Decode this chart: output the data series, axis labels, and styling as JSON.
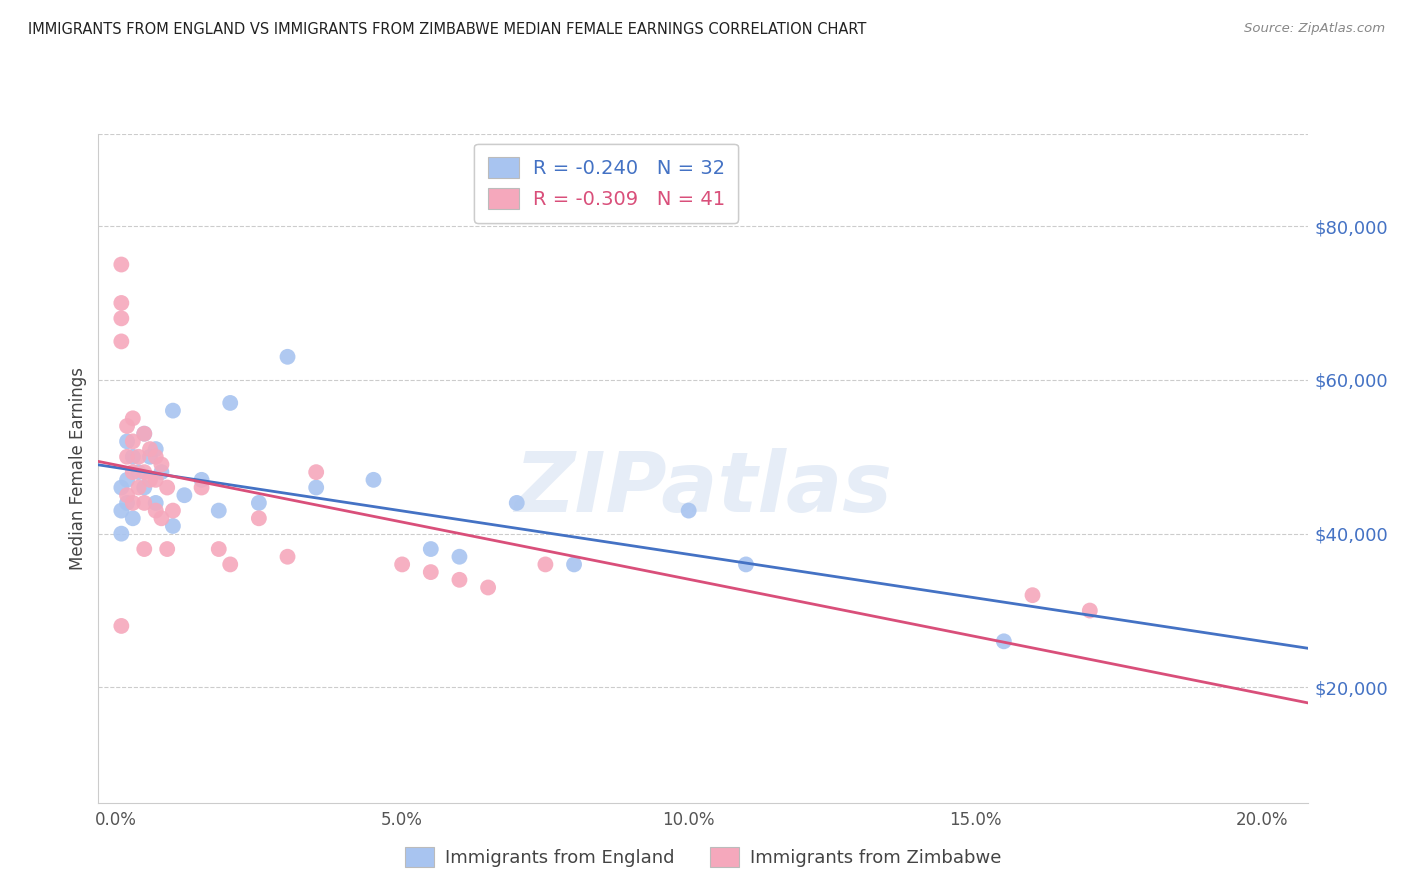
{
  "title": "IMMIGRANTS FROM ENGLAND VS IMMIGRANTS FROM ZIMBABWE MEDIAN FEMALE EARNINGS CORRELATION CHART",
  "source": "Source: ZipAtlas.com",
  "ylabel": "Median Female Earnings",
  "xlabel_ticks": [
    "0.0%",
    "5.0%",
    "10.0%",
    "15.0%",
    "20.0%"
  ],
  "xlabel_tick_vals": [
    0.0,
    0.05,
    0.1,
    0.15,
    0.2
  ],
  "ylabel_ticks": [
    "$20,000",
    "$40,000",
    "$60,000",
    "$80,000"
  ],
  "ylabel_tick_vals": [
    20000,
    40000,
    60000,
    80000
  ],
  "xlim": [
    -0.003,
    0.208
  ],
  "ylim": [
    5000,
    92000
  ],
  "england_R": -0.24,
  "england_N": 32,
  "zimbabwe_R": -0.309,
  "zimbabwe_N": 41,
  "england_color": "#a8c4f0",
  "zimbabwe_color": "#f5a8bc",
  "england_line_color": "#4472c4",
  "zimbabwe_line_color": "#d94f7a",
  "watermark": "ZIPatlas",
  "england_x": [
    0.001,
    0.001,
    0.001,
    0.002,
    0.002,
    0.002,
    0.003,
    0.003,
    0.004,
    0.005,
    0.005,
    0.006,
    0.007,
    0.007,
    0.008,
    0.01,
    0.01,
    0.012,
    0.015,
    0.018,
    0.02,
    0.025,
    0.03,
    0.035,
    0.045,
    0.055,
    0.06,
    0.07,
    0.08,
    0.1,
    0.11,
    0.155
  ],
  "england_y": [
    46000,
    43000,
    40000,
    52000,
    47000,
    44000,
    50000,
    42000,
    48000,
    53000,
    46000,
    50000,
    51000,
    44000,
    48000,
    56000,
    41000,
    45000,
    47000,
    43000,
    57000,
    44000,
    63000,
    46000,
    47000,
    38000,
    37000,
    44000,
    36000,
    43000,
    36000,
    26000
  ],
  "zimbabwe_x": [
    0.001,
    0.001,
    0.001,
    0.001,
    0.001,
    0.002,
    0.002,
    0.002,
    0.003,
    0.003,
    0.003,
    0.003,
    0.004,
    0.004,
    0.005,
    0.005,
    0.005,
    0.005,
    0.006,
    0.006,
    0.007,
    0.007,
    0.007,
    0.008,
    0.008,
    0.009,
    0.009,
    0.01,
    0.015,
    0.018,
    0.02,
    0.025,
    0.03,
    0.035,
    0.05,
    0.055,
    0.06,
    0.065,
    0.075,
    0.16,
    0.17
  ],
  "zimbabwe_y": [
    75000,
    70000,
    68000,
    65000,
    28000,
    54000,
    50000,
    45000,
    55000,
    52000,
    48000,
    44000,
    50000,
    46000,
    53000,
    48000,
    44000,
    38000,
    51000,
    47000,
    50000,
    47000,
    43000,
    49000,
    42000,
    46000,
    38000,
    43000,
    46000,
    38000,
    36000,
    42000,
    37000,
    48000,
    36000,
    35000,
    34000,
    33000,
    36000,
    32000,
    30000
  ]
}
